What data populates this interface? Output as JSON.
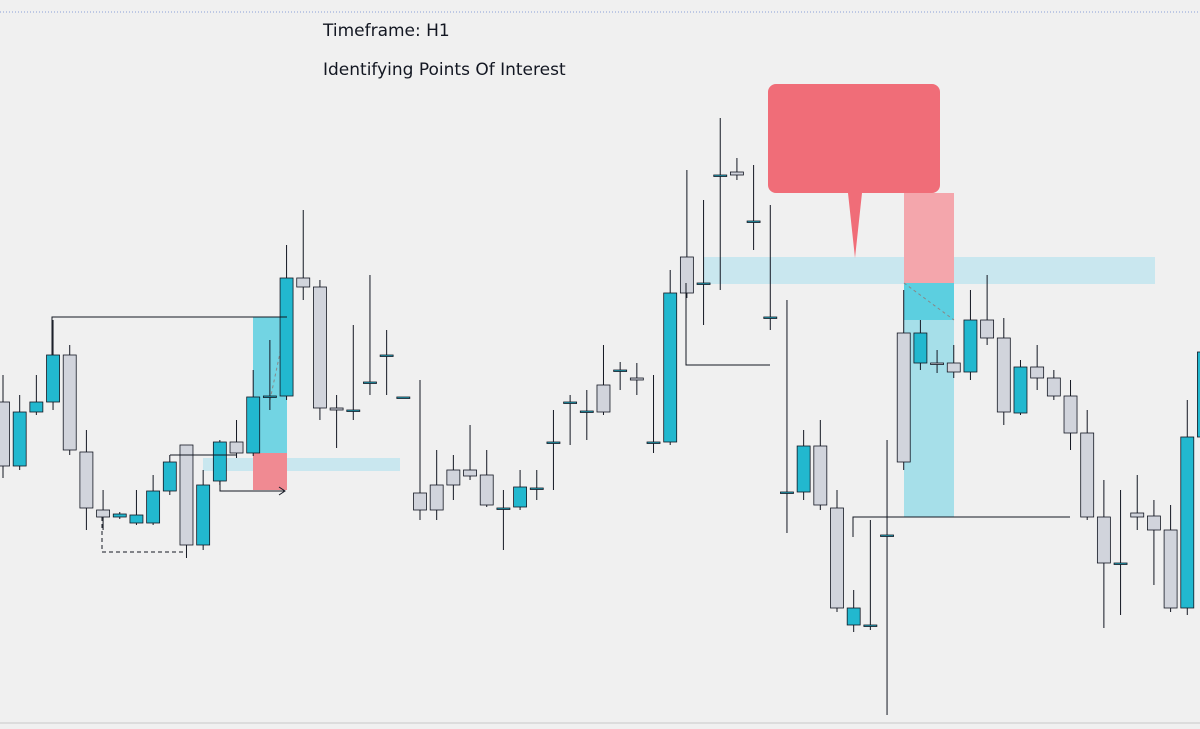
{
  "chart_data": {
    "type": "candlestick",
    "title": "Timeframe: H1",
    "subtitle": "Identifying Points Of Interest",
    "up_color": "#22b8cf",
    "down_color": "#d1d4dc",
    "open": [
      327,
      263,
      317,
      327,
      374,
      277,
      219,
      212,
      206,
      206,
      238,
      284,
      184,
      248,
      287,
      276,
      332,
      333,
      451,
      442,
      321,
      319,
      346,
      374,
      332,
      236,
      244,
      259,
      259,
      254,
      221,
      222,
      241,
      287,
      326,
      317,
      344,
      358,
      351,
      287,
      287,
      472,
      446,
      554,
      557,
      508,
      412,
      237,
      237,
      283,
      221,
      104,
      104,
      194,
      396,
      366,
      366,
      366,
      357,
      409,
      391,
      316,
      362,
      351,
      333,
      296,
      212,
      166,
      216,
      213,
      199,
      121,
      292
    ],
    "high": [
      354,
      334,
      354,
      409,
      384,
      299,
      239,
      217,
      239,
      254,
      274,
      279,
      259,
      289,
      309,
      359,
      389,
      484,
      519,
      449,
      334,
      404,
      454,
      399,
      329,
      349,
      279,
      274,
      304,
      279,
      239,
      259,
      259,
      319,
      334,
      339,
      384,
      367,
      366,
      354,
      459,
      559,
      529,
      611,
      571,
      564,
      524,
      429,
      299,
      309,
      239,
      139,
      209,
      289,
      439,
      409,
      379,
      384,
      439,
      454,
      411,
      369,
      384,
      359,
      349,
      319,
      249,
      239,
      254,
      229,
      224,
      329,
      434
    ],
    "low": [
      251,
      259,
      314,
      319,
      274,
      199,
      199,
      210,
      204,
      204,
      234,
      171,
      179,
      244,
      271,
      273,
      319,
      329,
      429,
      309,
      281,
      309,
      334,
      334,
      329,
      209,
      209,
      229,
      249,
      222,
      179,
      219,
      229,
      239,
      284,
      289,
      314,
      339,
      334,
      276,
      284,
      431,
      404,
      439,
      549,
      479,
      399,
      196,
      229,
      219,
      117,
      97,
      99,
      14,
      259,
      359,
      356,
      351,
      349,
      384,
      304,
      314,
      339,
      329,
      279,
      209,
      101,
      114,
      199,
      144,
      117,
      114,
      289
    ],
    "close": [
      263,
      317,
      327,
      374,
      279,
      221,
      212,
      215,
      214,
      238,
      267,
      184,
      244,
      287,
      276,
      332,
      333,
      451,
      442,
      321,
      319,
      319,
      347,
      374,
      332,
      219,
      219,
      244,
      253,
      224,
      221,
      242,
      241,
      287,
      327,
      318,
      317,
      359,
      349,
      287,
      436,
      436,
      446,
      554,
      554,
      508,
      412,
      237,
      283,
      224,
      121,
      121,
      104,
      194,
      267,
      396,
      365,
      357,
      409,
      391,
      317,
      362,
      351,
      333,
      296,
      212,
      166,
      166,
      212,
      199,
      121,
      292,
      377
    ]
  }
}
